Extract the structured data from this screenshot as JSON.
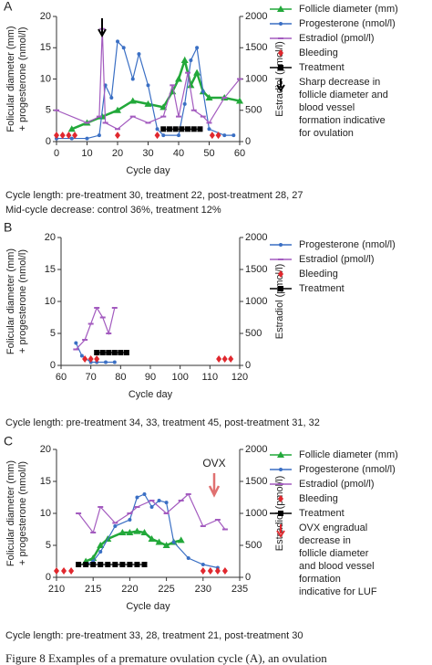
{
  "chart_data": [
    {
      "type": "line",
      "panel": "A",
      "xlabel": "Cycle day",
      "ylabel": [
        "Folicular diameter (mm)",
        "+ progesterone (nmol/l)"
      ],
      "y2label": "Estradiol (pmol/l)",
      "xlim": [
        0,
        60
      ],
      "xticks": [
        0,
        10,
        20,
        30,
        40,
        50,
        60
      ],
      "ylim": [
        0,
        20
      ],
      "yticks": [
        0,
        5,
        10,
        15,
        20
      ],
      "y2lim": [
        0,
        2000
      ],
      "y2ticks": [
        0,
        500,
        1000,
        1500,
        2000
      ],
      "series": [
        {
          "name": "Follicle diameter (mm)",
          "color": "#22a83a",
          "marker": "triangle",
          "x": [
            5,
            10,
            15,
            20,
            25,
            30,
            35,
            38,
            40,
            42,
            44,
            46,
            48,
            50,
            55,
            60
          ],
          "values": [
            2,
            3,
            4,
            5,
            6.5,
            6,
            5.5,
            8,
            10,
            13,
            9,
            11,
            8,
            7,
            7,
            6.5
          ]
        },
        {
          "name": "Progesterone (nmol/l)",
          "color": "#3a6fc4",
          "marker": "circle",
          "x": [
            0,
            5,
            10,
            14,
            16,
            18,
            20,
            22,
            25,
            27,
            30,
            33,
            35,
            40,
            42,
            44,
            46,
            48,
            50,
            55,
            58
          ],
          "values": [
            0.5,
            0.5,
            0.5,
            1,
            9,
            7,
            16,
            15,
            10,
            14,
            9,
            2,
            1,
            1,
            6,
            13,
            15,
            8,
            2,
            1,
            1
          ]
        },
        {
          "name": "Estradiol (pmol/l)",
          "color": "#a35bbf",
          "marker": "dash",
          "axis": "y2",
          "x": [
            0,
            10,
            14,
            15,
            16,
            20,
            25,
            30,
            35,
            38,
            40,
            43,
            45,
            48,
            50,
            55,
            60
          ],
          "values": [
            500,
            300,
            400,
            1800,
            300,
            200,
            400,
            300,
            400,
            900,
            400,
            1100,
            500,
            400,
            300,
            700,
            1000
          ]
        },
        {
          "name": "Bleeding",
          "color": "#e0282e",
          "marker": "diamond",
          "noline": true,
          "x": [
            0,
            2,
            4,
            6,
            20,
            33,
            51,
            53
          ],
          "values": [
            1,
            1,
            1,
            1,
            1,
            1,
            1,
            1
          ]
        },
        {
          "name": "Treatment",
          "color": "#000000",
          "marker": "square",
          "x": [
            35,
            37,
            39,
            41,
            43,
            45,
            47
          ],
          "values": [
            2,
            2,
            2,
            2,
            2,
            2,
            2
          ]
        }
      ],
      "legend_note": [
        "Sharp decrease in",
        "follicle diameter and",
        "blood vessel",
        "formation indicative",
        "for ovulation"
      ],
      "notes": [
        "Cycle length: pre-treatment 30, treatment 22, post-treatment 28, 27",
        "Mid-cycle decrease: control 36%, treatment 12%"
      ]
    },
    {
      "type": "line",
      "panel": "B",
      "xlabel": "Cycle day",
      "ylabel": [
        "Folicular diameter (mm)",
        "+ progesterone (nmol/l)"
      ],
      "y2label": "Estradiol (pmol/l)",
      "xlim": [
        60,
        120
      ],
      "xticks": [
        60,
        70,
        80,
        90,
        100,
        110,
        120
      ],
      "ylim": [
        0,
        20
      ],
      "yticks": [
        0,
        5,
        10,
        15,
        20
      ],
      "y2lim": [
        0,
        2000
      ],
      "y2ticks": [
        0,
        500,
        1000,
        1500,
        2000
      ],
      "series": [
        {
          "name": "Progesterone (nmol/l)",
          "color": "#3a6fc4",
          "marker": "circle",
          "x": [
            65,
            67,
            70,
            72,
            75,
            78
          ],
          "values": [
            3.5,
            1.5,
            0.5,
            0.5,
            0.5,
            0.5
          ]
        },
        {
          "name": "Estradiol (pmol/l)",
          "color": "#a35bbf",
          "marker": "dash",
          "axis": "y2",
          "x": [
            65,
            68,
            70,
            72,
            74,
            76,
            78
          ],
          "values": [
            250,
            400,
            650,
            900,
            750,
            500,
            900
          ]
        },
        {
          "name": "Bleeding",
          "color": "#e0282e",
          "marker": "diamond",
          "noline": true,
          "x": [
            68,
            70,
            72,
            113,
            115,
            117
          ],
          "values": [
            1,
            1,
            1,
            1,
            1,
            1
          ]
        },
        {
          "name": "Treatment",
          "color": "#000000",
          "marker": "square",
          "x": [
            72,
            74,
            76,
            78,
            80,
            82
          ],
          "values": [
            2,
            2,
            2,
            2,
            2,
            2
          ]
        }
      ],
      "notes": [
        "Cycle length: pre-treatment 34, 33, treatment 45, post-treatment 31, 32"
      ]
    },
    {
      "type": "line",
      "panel": "C",
      "xlabel": "Cycle day",
      "ylabel": [
        "Folicular diameter (mm)",
        "+ progesterone (nmol/l)"
      ],
      "y2label": "Estradiol (pmol/l)",
      "xlim": [
        210,
        235
      ],
      "xticks": [
        210,
        215,
        220,
        225,
        230,
        235
      ],
      "ylim": [
        0,
        20
      ],
      "yticks": [
        0,
        5,
        10,
        15,
        20
      ],
      "y2lim": [
        0,
        2000
      ],
      "y2ticks": [
        0,
        500,
        1000,
        1500,
        2000
      ],
      "series": [
        {
          "name": "Follicle diameter (mm)",
          "color": "#22a83a",
          "marker": "triangle",
          "x": [
            214,
            215,
            216,
            217,
            219,
            220,
            221,
            222,
            223,
            224,
            225,
            226,
            227
          ],
          "values": [
            2.5,
            3,
            5,
            6,
            7,
            7,
            7.2,
            7,
            6,
            5.5,
            5,
            5.5,
            5.8
          ]
        },
        {
          "name": "Progesterone (nmol/l)",
          "color": "#3a6fc4",
          "marker": "circle",
          "x": [
            214,
            215,
            216,
            218,
            220,
            221,
            222,
            223,
            224,
            225,
            226,
            228,
            230,
            232
          ],
          "values": [
            2,
            2.5,
            4,
            8,
            9,
            12.5,
            13,
            11,
            12,
            11.7,
            5.5,
            3,
            2,
            1.5
          ]
        },
        {
          "name": "Estradiol (pmol/l)",
          "color": "#a35bbf",
          "marker": "dash",
          "axis": "y2",
          "x": [
            213,
            215,
            216,
            218,
            220,
            221,
            223,
            225,
            227,
            228,
            230,
            232,
            233
          ],
          "values": [
            1000,
            700,
            1100,
            850,
            1000,
            1100,
            1200,
            1000,
            1200,
            1300,
            800,
            900,
            750
          ]
        },
        {
          "name": "Bleeding",
          "color": "#e0282e",
          "marker": "diamond",
          "noline": true,
          "x": [
            210,
            211,
            212,
            230,
            231,
            232,
            233
          ],
          "values": [
            1,
            1,
            1,
            1,
            1,
            1,
            1
          ]
        },
        {
          "name": "Treatment",
          "color": "#000000",
          "marker": "square",
          "x": [
            213,
            214,
            215,
            216,
            217,
            218,
            219,
            220,
            221,
            222
          ],
          "values": [
            2,
            2,
            2,
            2,
            2,
            2,
            2,
            2,
            2,
            2
          ]
        }
      ],
      "annotation": "OVX",
      "legend_note": [
        "OVX engradual",
        "decrease in",
        "follicle diameter",
        "and blood vessel",
        "formation",
        "indicative for LUF"
      ],
      "notes": [
        "Cycle length: pre-treatment 33, 28, treatment 21, post-treatment 30"
      ]
    }
  ],
  "figure_caption": "Figure 8 Examples of a premature ovulation cycle (A), an ovulation"
}
